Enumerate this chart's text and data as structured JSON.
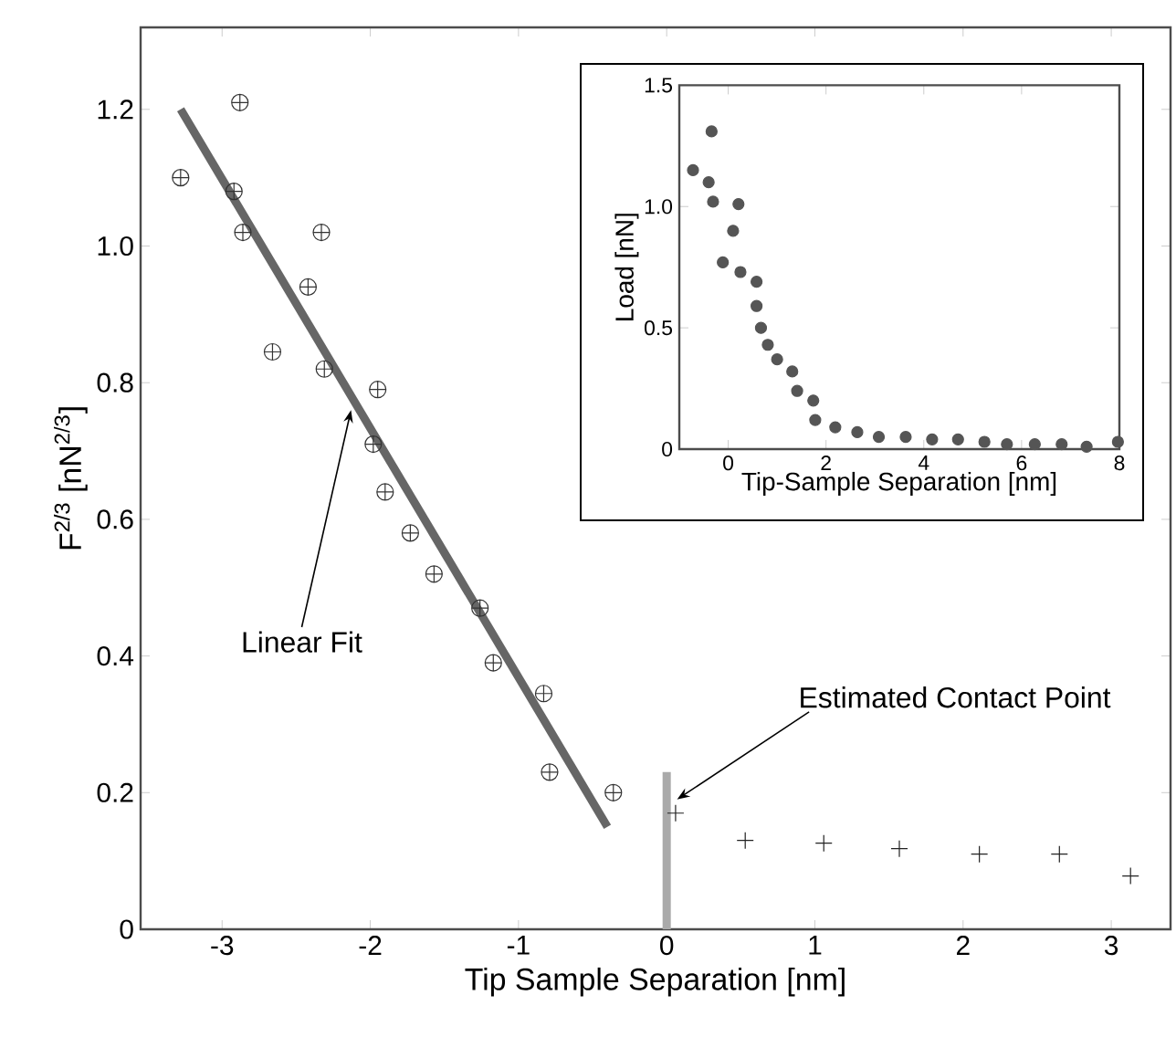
{
  "chart_data": [
    {
      "type": "scatter",
      "xlabel": "Tip Sample Separation [nm]",
      "ylabel": "F$^{2/3}$ [nN$^{2/3}$]",
      "xlim": [
        -3.55,
        3.4
      ],
      "ylim": [
        0,
        1.32
      ],
      "xticks": [
        -3,
        -2,
        -1,
        0,
        1,
        2,
        3
      ],
      "yticks": [
        0,
        0.2,
        0.4,
        0.6,
        0.8,
        {
          "value": 1.0,
          "label": "1.0"
        },
        1.2
      ],
      "tick_labels": true,
      "series": [
        {
          "type": "scatter",
          "color": "#333333",
          "x": [
            -3.28,
            -2.88,
            -2.92,
            -2.86,
            -2.33,
            -2.42,
            -2.66,
            -2.31,
            -1.95,
            -1.98,
            -1.9,
            -1.73,
            -1.57,
            -1.26,
            -1.17,
            -0.83,
            -0.79,
            -0.36
          ],
          "values": [
            1.1,
            1.21,
            1.08,
            1.02,
            1.02,
            0.94,
            0.845,
            0.82,
            0.79,
            0.71,
            0.64,
            0.58,
            0.52,
            0.47,
            0.39,
            0.345,
            0.23,
            0.2
          ]
        },
        {
          "type": "line",
          "marker": "none",
          "color": "#666666",
          "x": [
            -3.28,
            -0.4
          ],
          "values": [
            1.2,
            0.15
          ]
        },
        {
          "type": "scatter",
          "marker": "cross",
          "color": "#222222",
          "x": [
            0.06,
            0.53,
            1.06,
            1.57,
            2.11,
            2.65,
            3.13
          ],
          "values": [
            0.17,
            0.13,
            0.126,
            0.118,
            0.11,
            0.11,
            0.078
          ]
        },
        {
          "type": "line",
          "marker": "none",
          "color": "#aaaaaa",
          "x": [
            0,
            0
          ],
          "values": [
            0,
            0.23
          ]
        }
      ],
      "annotations": [
        {
          "text": "Linear Fit",
          "x": -2.13,
          "y": 0.76
        },
        {
          "text": "Estimated Contact Point",
          "x": 0.07,
          "y": 0.19
        }
      ]
    },
    {
      "type": "scatter",
      "xlabel": "Tip-Sample Separation [nm]",
      "ylabel": "Load [nN]",
      "xlim": [
        -1,
        8
      ],
      "ylim": [
        0,
        1.5
      ],
      "xticks": [
        0,
        2,
        4,
        6,
        8
      ],
      "yticks": [
        0,
        0.5,
        {
          "value": 1.0,
          "label": "1.0"
        },
        1.5
      ],
      "marker": "circle",
      "series": [
        {
          "color": "#555555",
          "x": [
            -0.72,
            -0.34,
            -0.4,
            -0.31,
            0.21,
            0.1,
            -0.11,
            0.25,
            0.58,
            0.58,
            0.67,
            0.81,
            1.0,
            1.31,
            1.41,
            1.74,
            1.78,
            2.19,
            2.64,
            3.08,
            3.63,
            4.17,
            4.7,
            5.24,
            5.7,
            6.27,
            6.82,
            7.33,
            7.97
          ],
          "values": [
            1.15,
            1.31,
            1.1,
            1.02,
            1.01,
            0.9,
            0.77,
            0.73,
            0.69,
            0.59,
            0.5,
            0.43,
            0.37,
            0.32,
            0.24,
            0.2,
            0.12,
            0.09,
            0.07,
            0.05,
            0.05,
            0.04,
            0.04,
            0.03,
            0.02,
            0.02,
            0.02,
            0.01,
            0.03
          ]
        }
      ]
    }
  ]
}
